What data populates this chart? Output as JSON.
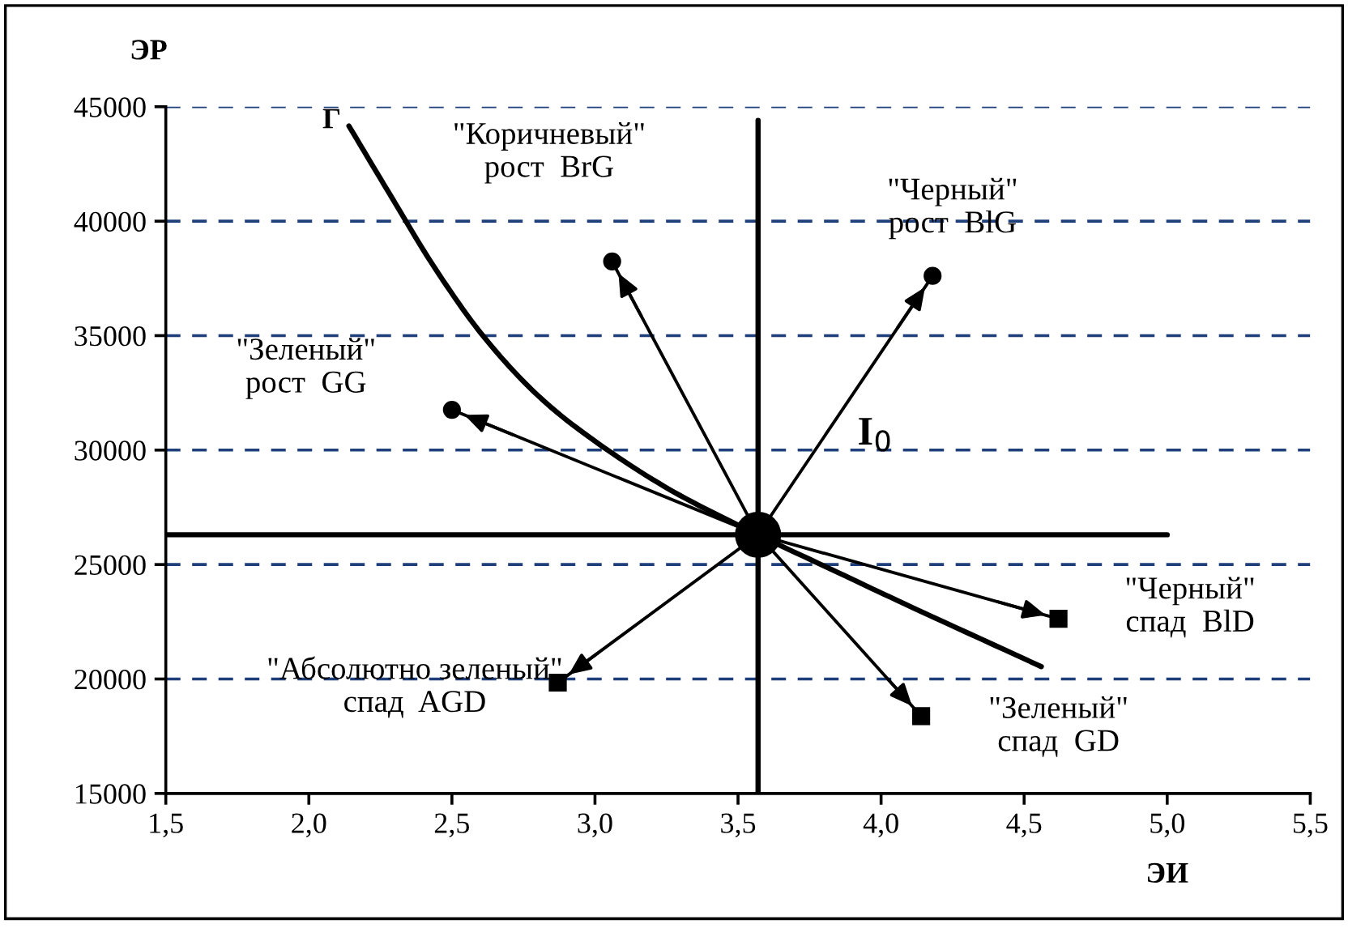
{
  "chart_data": {
    "type": "line",
    "xlabel": "ЭИ",
    "ylabel": "ЭР",
    "xlim": [
      1.5,
      5.5
    ],
    "xticks": [
      {
        "value": 1.5,
        "label": "1,5"
      },
      {
        "value": 2.0,
        "label": "2,0"
      },
      {
        "value": 2.5,
        "label": "2,5"
      },
      {
        "value": 3.0,
        "label": "3,0"
      },
      {
        "value": 3.5,
        "label": "3,5"
      },
      {
        "value": 4.0,
        "label": "4,0"
      },
      {
        "value": 4.5,
        "label": "4,5"
      },
      {
        "value": 5.0,
        "label": "5,0"
      },
      {
        "value": 5.5,
        "label": "5,5"
      }
    ],
    "ylim": [
      15000,
      45000
    ],
    "yticks": [
      15000,
      20000,
      25000,
      30000,
      35000,
      40000,
      45000
    ],
    "grid": "y",
    "legend": false,
    "series": [
      {
        "type": "line",
        "x": [
          2.14,
          2.29,
          2.44,
          2.61,
          2.8,
          3.01,
          3.27,
          3.57,
          3.85,
          4.11,
          4.56
        ],
        "values": [
          44160,
          41030,
          37960,
          34970,
          32390,
          30300,
          28210,
          26300,
          24650,
          23120,
          20540
        ],
        "color": "#000000",
        "marker": "none"
      },
      {
        "type": "line",
        "x": [
          1.5,
          5.0
        ],
        "values": [
          26300,
          26300
        ],
        "color": "#000000",
        "marker": "none"
      },
      {
        "type": "line",
        "x": [
          3.57,
          3.57
        ],
        "values": [
          15000,
          44400
        ],
        "color": "#000000",
        "marker": "none"
      },
      {
        "type": "line",
        "x": [
          3.57,
          3.06
        ],
        "values": [
          26300,
          38240
        ],
        "color": "#000000",
        "marker": "circle"
      },
      {
        "type": "line",
        "x": [
          3.57,
          4.18
        ],
        "values": [
          26300,
          37610
        ],
        "color": "#000000",
        "marker": "circle"
      },
      {
        "type": "line",
        "x": [
          3.57,
          2.5
        ],
        "values": [
          26300,
          31760
        ],
        "color": "#000000",
        "marker": "circle"
      },
      {
        "type": "line",
        "x": [
          3.57,
          4.62
        ],
        "values": [
          26300,
          22630
        ],
        "color": "#000000",
        "marker": "square"
      },
      {
        "type": "line",
        "x": [
          3.57,
          4.14
        ],
        "values": [
          26300,
          18380
        ],
        "color": "#000000",
        "marker": "square"
      },
      {
        "type": "line",
        "x": [
          3.57,
          2.87
        ],
        "values": [
          26300,
          19840
        ],
        "color": "#000000",
        "marker": "square"
      },
      {
        "type": "scatter",
        "x": [
          3.57
        ],
        "values": [
          26300
        ],
        "color": "#000000",
        "marker": "circle"
      }
    ],
    "annotations": [
      "Г",
      "\"Коричневый\"\nрост  BrG",
      "\"Черный\"\nрост  BlG",
      "\"Зеленый\"\nрост  GG",
      "I$_{0}$",
      "\"Черный\"\nспад  BlD",
      "\"Зеленый\"\nспад  GD",
      "\"Абсолютно зеленый\"\nспад  AGD"
    ]
  }
}
